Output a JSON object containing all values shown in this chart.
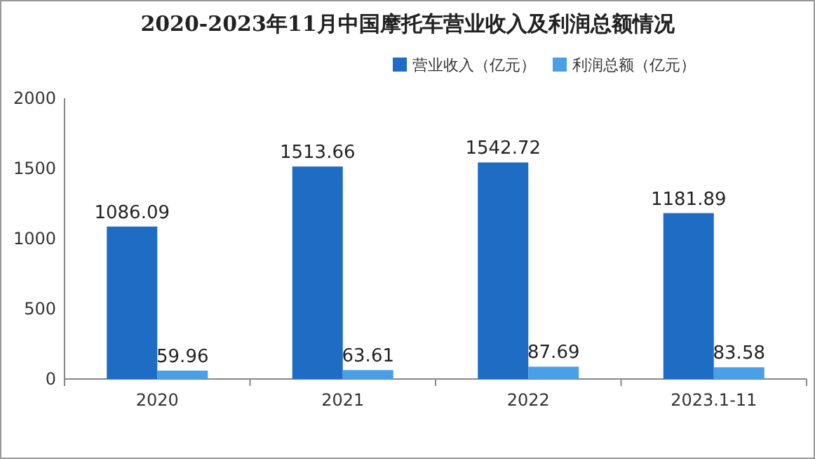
{
  "chart_data": {
    "type": "bar",
    "title": "2020-2023年11月中国摩托车营业收入及利润总额情况",
    "categories": [
      "2020",
      "2021",
      "2022",
      "2023.1-11"
    ],
    "series": [
      {
        "name": "营业收入（亿元）",
        "color": "#1f6cc4",
        "values": [
          1086.09,
          1513.66,
          1542.72,
          1181.89
        ]
      },
      {
        "name": "利润总额（亿元）",
        "color": "#4aa0e6",
        "values": [
          59.96,
          63.61,
          87.69,
          83.58
        ]
      }
    ],
    "ylim": [
      0,
      2000
    ],
    "yticks": [
      0,
      500,
      1000,
      1500,
      2000
    ],
    "data_labels": true,
    "legend": "top right",
    "grid": false
  }
}
